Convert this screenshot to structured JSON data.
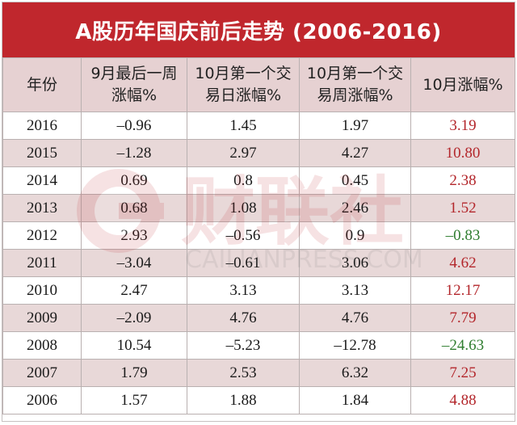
{
  "title": "A股历年国庆前后走势 (2006-2016)",
  "headers": {
    "year": [
      "年份"
    ],
    "before": [
      "9月最后一周",
      "涨幅%"
    ],
    "firstday": [
      "10月第一个交",
      "易日涨幅%"
    ],
    "firstweek": [
      "10月第一个交",
      "易周涨幅%"
    ],
    "october": [
      "10月涨幅%"
    ]
  },
  "rows": [
    {
      "year": "2016",
      "before": "–0.96",
      "firstday": "1.45",
      "firstweek": "1.97",
      "october": "3.19",
      "trend": "up"
    },
    {
      "year": "2015",
      "before": "–1.28",
      "firstday": "2.97",
      "firstweek": "4.27",
      "october": "10.80",
      "trend": "up"
    },
    {
      "year": "2014",
      "before": "0.69",
      "firstday": "0.8",
      "firstweek": "0.45",
      "october": "2.38",
      "trend": "up"
    },
    {
      "year": "2013",
      "before": "0.68",
      "firstday": "1.08",
      "firstweek": "2.46",
      "october": "1.52",
      "trend": "up"
    },
    {
      "year": "2012",
      "before": "2.93",
      "firstday": "–0.56",
      "firstweek": "0.9",
      "october": "–0.83",
      "trend": "down"
    },
    {
      "year": "2011",
      "before": "–3.04",
      "firstday": "–0.61",
      "firstweek": "3.06",
      "october": "4.62",
      "trend": "up"
    },
    {
      "year": "2010",
      "before": "2.47",
      "firstday": "3.13",
      "firstweek": "3.13",
      "october": "12.17",
      "trend": "up"
    },
    {
      "year": "2009",
      "before": "–2.09",
      "firstday": "4.76",
      "firstweek": "4.76",
      "october": "7.79",
      "trend": "up"
    },
    {
      "year": "2008",
      "before": "10.54",
      "firstday": "–5.23",
      "firstweek": "–12.78",
      "october": "–24.63",
      "trend": "down"
    },
    {
      "year": "2007",
      "before": "1.79",
      "firstday": "2.53",
      "firstweek": "6.32",
      "october": "7.25",
      "trend": "up"
    },
    {
      "year": "2006",
      "before": "1.57",
      "firstday": "1.88",
      "firstweek": "1.84",
      "october": "4.88",
      "trend": "up"
    }
  ],
  "watermark": {
    "brand": "财联社",
    "url": "CAILIANPRESS.COM",
    "icon": "cailianpress-logo-icon"
  },
  "colors": {
    "title_bg": "#c0272d",
    "stripe": "#e8d8d8",
    "header_bg": "#e6d1d2",
    "up": "#b3262b",
    "down": "#2f7d2f"
  }
}
